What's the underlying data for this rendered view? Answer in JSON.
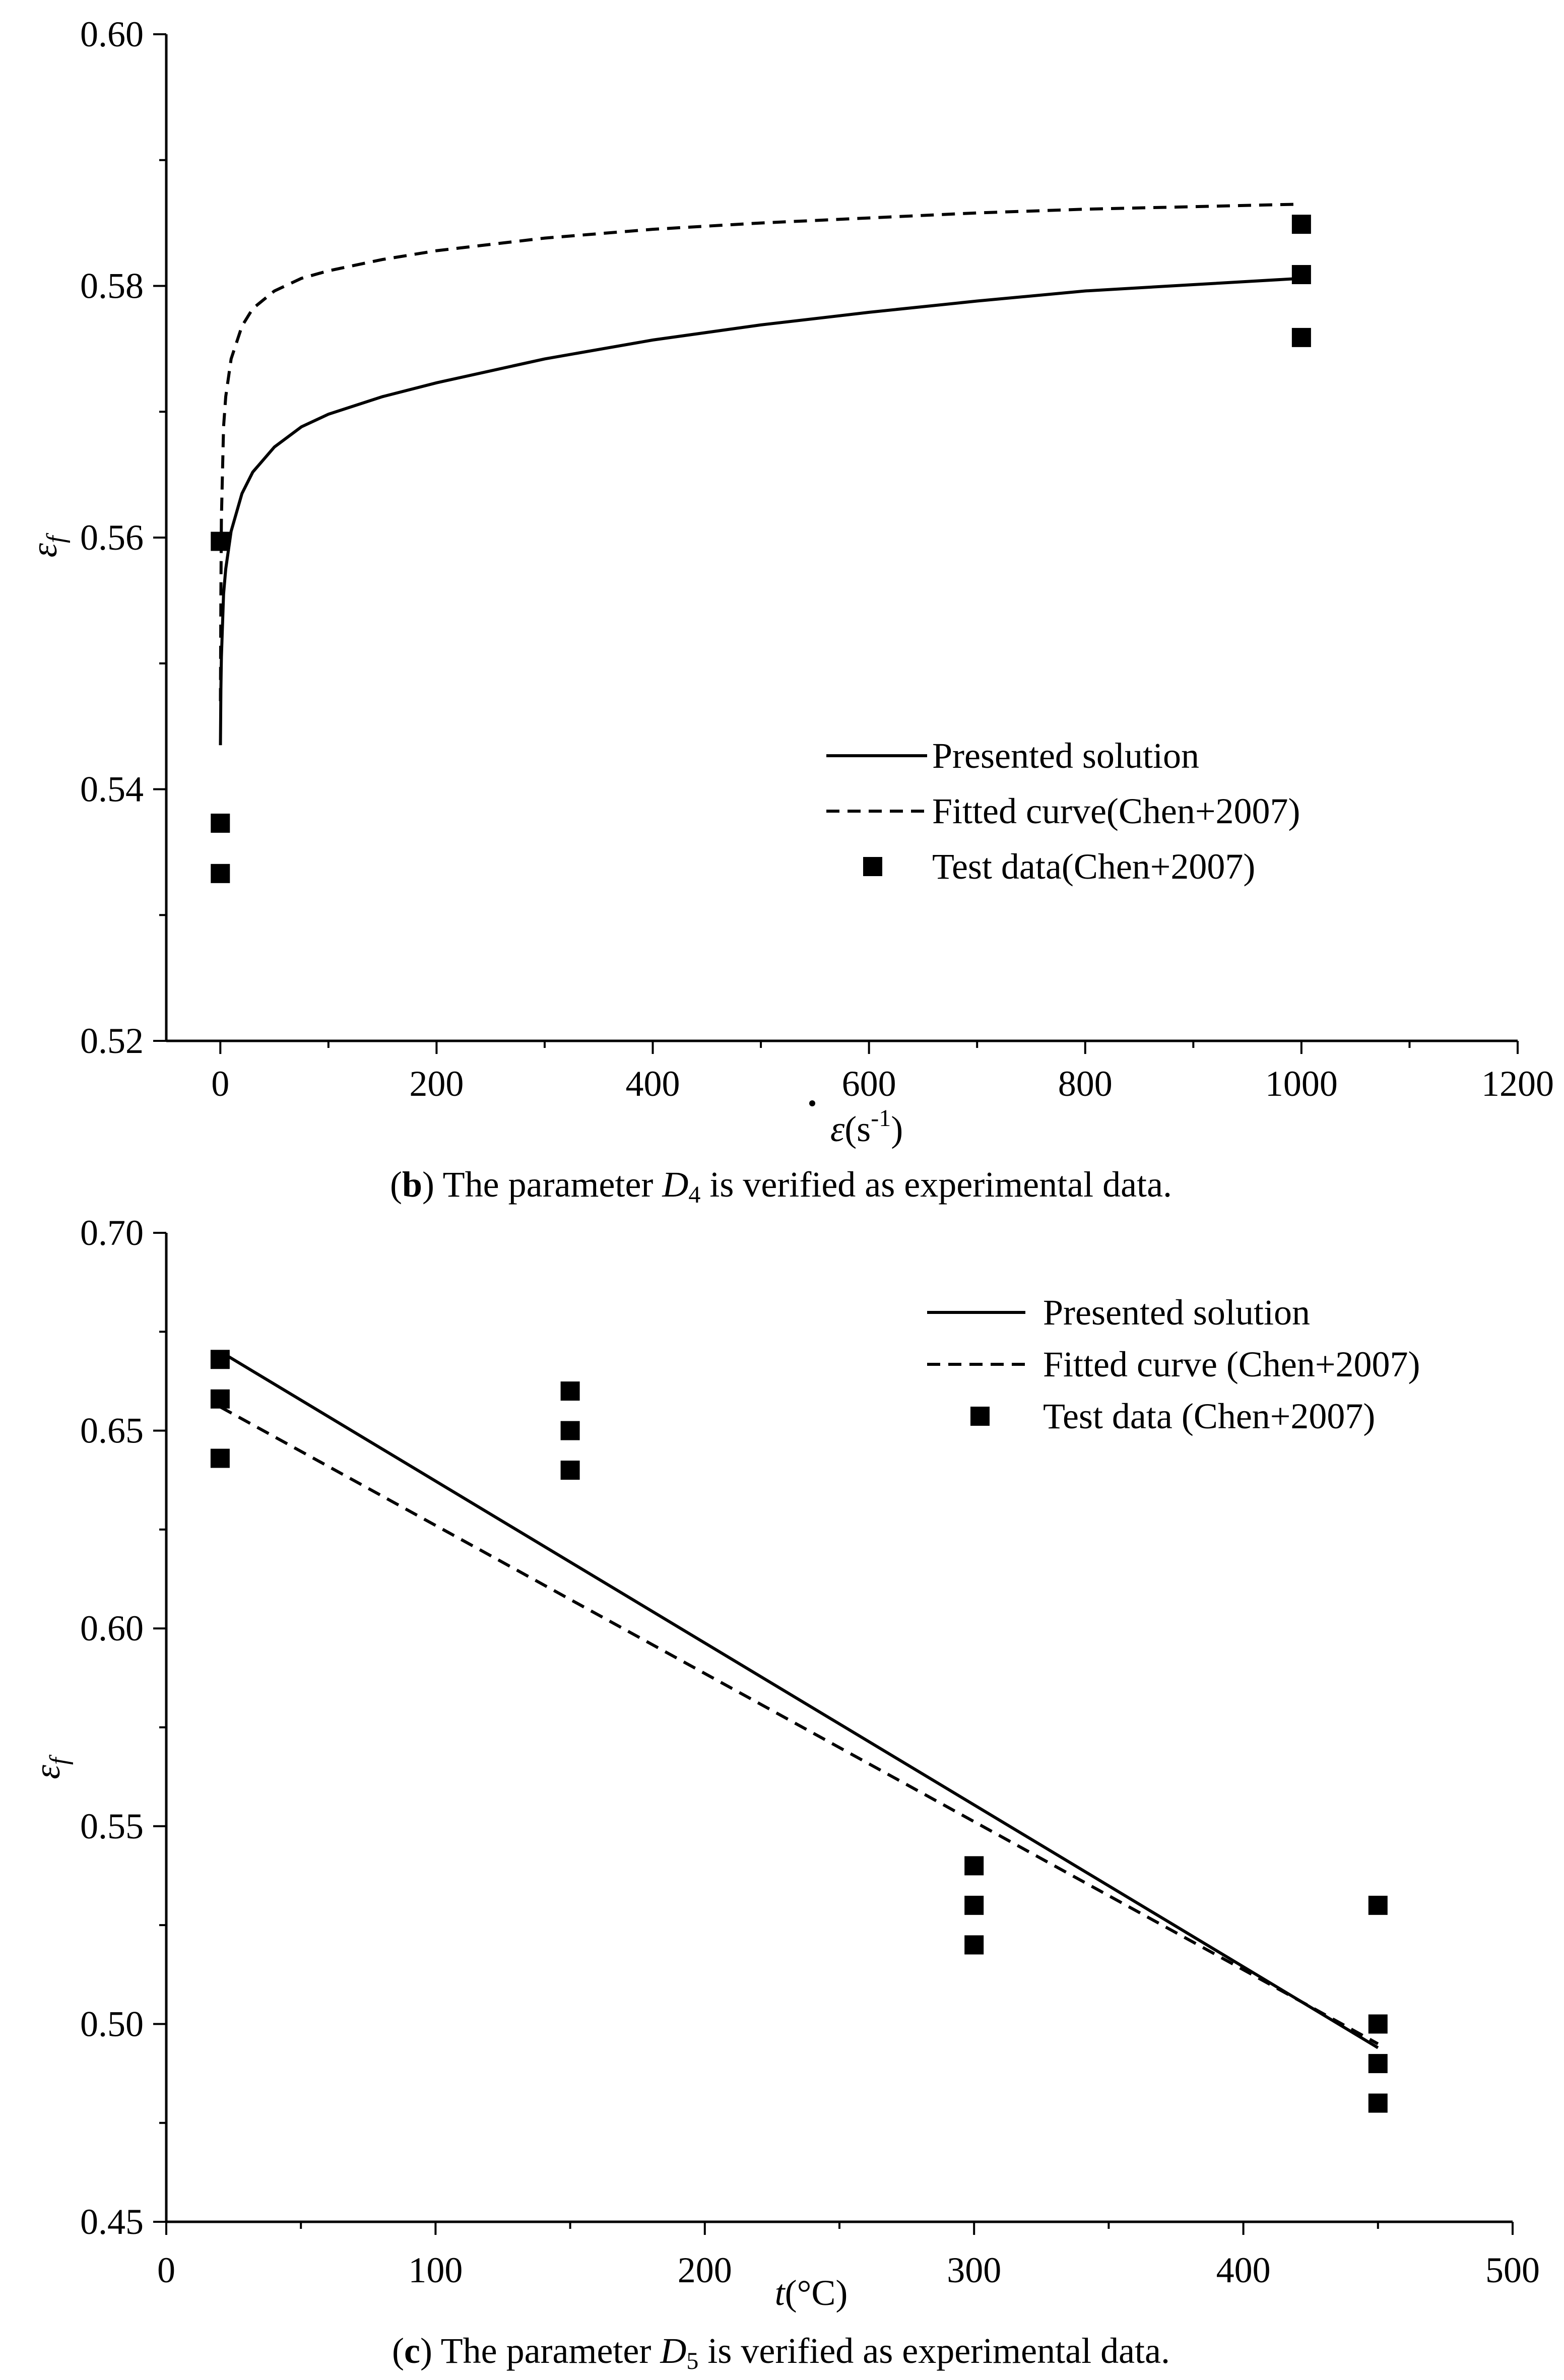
{
  "chart_data": [
    {
      "panel": "b",
      "type": "line",
      "caption": {
        "letter": "b",
        "before": " The parameter ",
        "param": "D",
        "sub": "4",
        "after": " is verified as experimental data."
      },
      "xlabel": {
        "symbol": "ε",
        "unit": "(s",
        "exp": "-1",
        "close": ")"
      },
      "ylabel": {
        "symbol": "ε",
        "sub": "f"
      },
      "xlim": [
        -50,
        1200
      ],
      "ylim": [
        0.52,
        0.6
      ],
      "x_ticks": [
        0,
        200,
        400,
        600,
        800,
        1000,
        1200
      ],
      "x_tick_labels": [
        "0",
        "200",
        "400",
        "600",
        "800",
        "1000",
        "1200"
      ],
      "x_minor_ticks": [
        100,
        300,
        500,
        700,
        900,
        1100
      ],
      "y_ticks": [
        0.52,
        0.54,
        0.56,
        0.58,
        0.6
      ],
      "y_tick_labels": [
        "0.52",
        "0.54",
        "0.56",
        "0.58",
        "0.60"
      ],
      "y_minor_ticks": [
        0.53,
        0.55,
        0.57,
        0.59
      ],
      "legend_position": "bottom-right",
      "series": [
        {
          "name": "Presented solution",
          "style": "solid",
          "x": [
            0.1,
            0.5,
            1,
            3,
            5,
            10,
            20,
            30,
            50,
            75,
            100,
            150,
            200,
            300,
            400,
            500,
            600,
            700,
            800,
            900,
            1000
          ],
          "y": [
            0.5435,
            0.548,
            0.5505,
            0.5555,
            0.5575,
            0.5605,
            0.5635,
            0.5652,
            0.5672,
            0.5688,
            0.5698,
            0.5712,
            0.5723,
            0.5742,
            0.5757,
            0.5769,
            0.5779,
            0.5788,
            0.5796,
            0.5801,
            0.5806
          ]
        },
        {
          "name": "Fitted curve(Chen+2007)",
          "style": "dashed",
          "x": [
            0.1,
            0.5,
            1,
            3,
            5,
            10,
            20,
            30,
            50,
            75,
            100,
            150,
            200,
            300,
            400,
            500,
            600,
            700,
            800,
            900,
            1000
          ],
          "y": [
            0.547,
            0.5555,
            0.5615,
            0.5688,
            0.5712,
            0.5742,
            0.5768,
            0.5782,
            0.5796,
            0.5806,
            0.5812,
            0.5821,
            0.5828,
            0.5838,
            0.5845,
            0.585,
            0.5854,
            0.5858,
            0.5861,
            0.5863,
            0.5865
          ]
        }
      ],
      "scatter": {
        "name": "Test data(Chen+2007)",
        "x": [
          0,
          0,
          0,
          1000,
          1000,
          1000
        ],
        "y": [
          0.5597,
          0.5373,
          0.5333,
          0.5849,
          0.5809,
          0.5759
        ]
      }
    },
    {
      "panel": "c",
      "type": "line",
      "caption": {
        "letter": "c",
        "before": " The parameter ",
        "param": "D",
        "sub": "5",
        "after": " is verified as experimental data."
      },
      "xlabel": {
        "symbol": "t",
        "unit": "(°C)"
      },
      "ylabel": {
        "symbol": "ε",
        "sub": "f"
      },
      "xlim": [
        0,
        500
      ],
      "ylim": [
        0.45,
        0.7
      ],
      "x_ticks": [
        0,
        100,
        200,
        300,
        400,
        500
      ],
      "x_tick_labels": [
        "0",
        "100",
        "200",
        "300",
        "400",
        "500"
      ],
      "x_minor_ticks": [
        50,
        150,
        250,
        350,
        450
      ],
      "y_ticks": [
        0.45,
        0.5,
        0.55,
        0.6,
        0.65,
        0.7
      ],
      "y_tick_labels": [
        "0.45",
        "0.50",
        "0.55",
        "0.60",
        "0.65",
        "0.70"
      ],
      "y_minor_ticks": [
        0.475,
        0.525,
        0.575,
        0.625,
        0.675
      ],
      "legend_position": "top-right",
      "series": [
        {
          "name": "Presented solution",
          "style": "solid",
          "x": [
            20,
            450
          ],
          "y": [
            0.67,
            0.494
          ]
        },
        {
          "name": "Fitted curve (Chen+2007)",
          "style": "dashed",
          "x": [
            20,
            450
          ],
          "y": [
            0.656,
            0.495
          ]
        }
      ],
      "scatter": {
        "name": "Test data (Chen+2007)",
        "x": [
          20,
          20,
          20,
          150,
          150,
          150,
          300,
          300,
          300,
          450,
          450,
          450,
          450
        ],
        "y": [
          0.668,
          0.658,
          0.643,
          0.66,
          0.65,
          0.64,
          0.54,
          0.53,
          0.52,
          0.53,
          0.5,
          0.49,
          0.48
        ]
      }
    }
  ]
}
